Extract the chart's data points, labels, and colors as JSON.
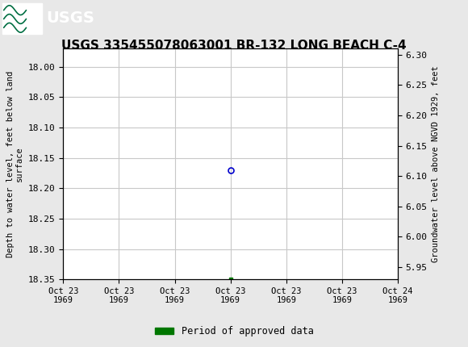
{
  "title": "USGS 335455078063001 BR-132 LONG BEACH C-4",
  "ylabel_left": "Depth to water level, feet below land\nsurface",
  "ylabel_right": "Groundwater level above NGVD 1929, feet",
  "ylim_left": [
    18.35,
    17.97
  ],
  "ylim_right": [
    5.93,
    6.31
  ],
  "xlim": [
    0,
    6
  ],
  "xtick_labels": [
    "Oct 23\n1969",
    "Oct 23\n1969",
    "Oct 23\n1969",
    "Oct 23\n1969",
    "Oct 23\n1969",
    "Oct 23\n1969",
    "Oct 24\n1969"
  ],
  "yticks_left": [
    18.0,
    18.05,
    18.1,
    18.15,
    18.2,
    18.25,
    18.3,
    18.35
  ],
  "yticks_right": [
    6.3,
    6.25,
    6.2,
    6.15,
    6.1,
    6.05,
    6.0,
    5.95
  ],
  "data_point_x": 3.0,
  "data_point_y_depth": 18.17,
  "data_point_marker_x": 3.0,
  "data_point_marker_y_depth": 18.35,
  "header_bg_color": "#006e42",
  "header_text_color": "#ffffff",
  "plot_bg_color": "#ffffff",
  "fig_bg_color": "#e8e8e8",
  "grid_color": "#c8c8c8",
  "open_circle_color": "#0000cc",
  "filled_square_color": "#007700",
  "legend_label": "Period of approved data",
  "legend_color": "#007700",
  "font_family": "monospace",
  "title_fontsize": 11,
  "tick_fontsize": 8,
  "ylabel_fontsize": 7.5
}
